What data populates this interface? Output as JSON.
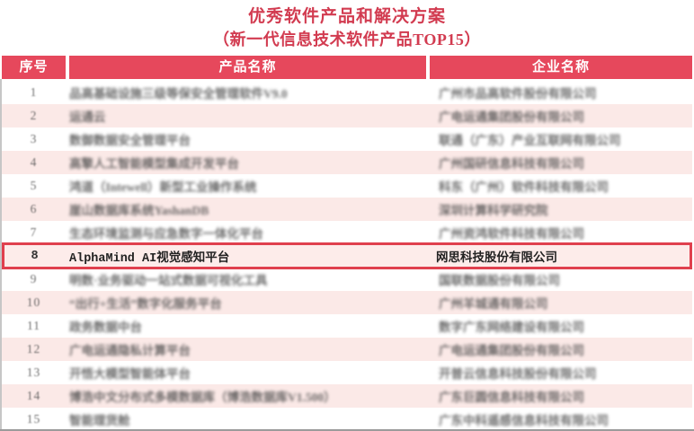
{
  "page": {
    "title": "优秀软件产品和解决方案",
    "subtitle": "（新一代信息技术软件产品TOP15）",
    "title_color": "#d23b50",
    "header_bg": "#e6485c",
    "stripe_color": "#fbe9e7",
    "highlight_bg": "#fdecea",
    "highlight_border": "#e0404e"
  },
  "table": {
    "columns": [
      "序号",
      "产品名称",
      "企业名称"
    ],
    "highlighted_row": 8,
    "rows": [
      {
        "num": "1",
        "product": "品高基础设施三级等保安全管理软件V9.0",
        "company": "广州市品高软件股份有限公司"
      },
      {
        "num": "2",
        "product": "运通云",
        "company": "广电运通集团股份有限公司"
      },
      {
        "num": "3",
        "product": "数御数据安全管理平台",
        "company": "联通（广东）产业互联网有限公司"
      },
      {
        "num": "4",
        "product": "高擎人工智能模型集成开发平台",
        "company": "广州国研信息科技有限公司"
      },
      {
        "num": "5",
        "product": "鸿道（Intewell）新型工业操作系统",
        "company": "科东（广州）软件科技有限公司"
      },
      {
        "num": "6",
        "product": "崖山数据库系统YashanDB",
        "company": "深圳计算科学研究院"
      },
      {
        "num": "7",
        "product": "生态环境监测与应急数字一体化平台",
        "company": "广州资鸿软件科技有限公司"
      },
      {
        "num": "8",
        "product": "AlphaMind AI视觉感知平台",
        "company": "网思科技股份有限公司"
      },
      {
        "num": "9",
        "product": "明数·业务驱动一站式数据可视化工具",
        "company": "国联数据股份有限公司"
      },
      {
        "num": "10",
        "product": "“出行+生活”数字化服务平台",
        "company": "广州羊城通有限公司"
      },
      {
        "num": "11",
        "product": "政务数据中台",
        "company": "数字广东网络建设有限公司"
      },
      {
        "num": "12",
        "product": "广电运通隐私计算平台",
        "company": "广电运通集团股份有限公司"
      },
      {
        "num": "13",
        "product": "开悟大模型智能体平台",
        "company": "开普云信息科技股份有限公司"
      },
      {
        "num": "14",
        "product": "博浩中文分布式多模数据库（博浩数据库V1.500）",
        "company": "广东巨圆信息科技有限公司"
      },
      {
        "num": "15",
        "product": "智能理货舱",
        "company": "广东中科遥感信息科技有限公司"
      }
    ]
  }
}
